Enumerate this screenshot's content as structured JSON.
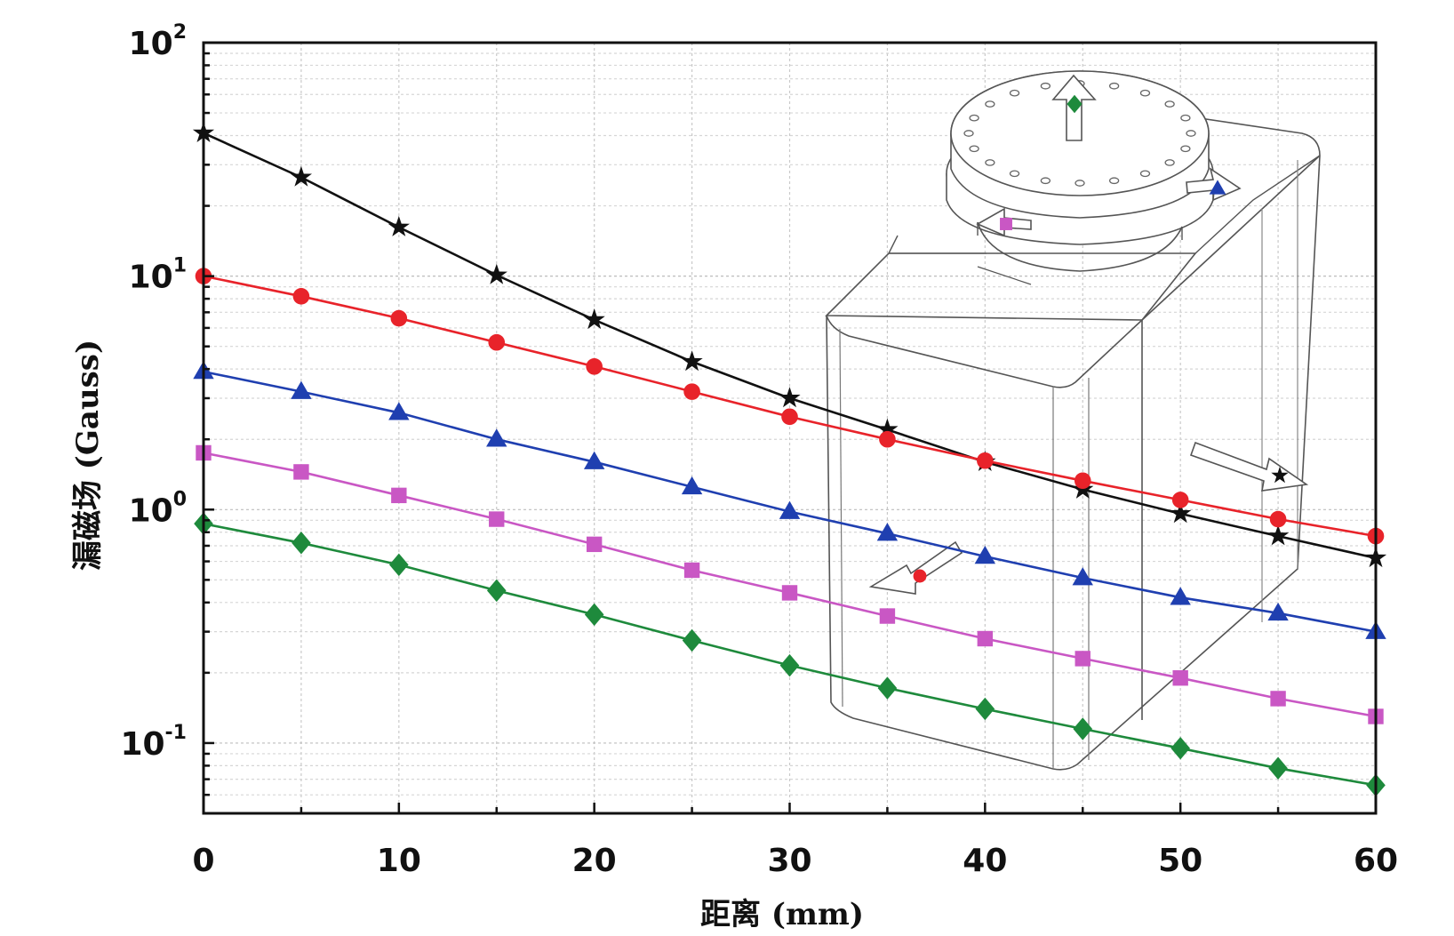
{
  "chart_data": {
    "type": "line",
    "xlabel": "距离 (mm)",
    "ylabel": "漏磁场 (Gauss)",
    "yscale": "log",
    "xlim": [
      0,
      60
    ],
    "ylim": [
      0.05,
      100
    ],
    "grid": true,
    "x": [
      0,
      5,
      10,
      15,
      20,
      25,
      30,
      35,
      40,
      45,
      50,
      55,
      60
    ],
    "x_ticks": [
      "0",
      "10",
      "20",
      "30",
      "40",
      "50",
      "60"
    ],
    "y_ticks": [
      {
        "base": "10",
        "exp": "-1"
      },
      {
        "base": "10",
        "exp": "0"
      },
      {
        "base": "10",
        "exp": "1"
      },
      {
        "base": "10",
        "exp": "2"
      }
    ],
    "series": [
      {
        "color": "#111111",
        "marker": "star",
        "values": [
          41,
          26.5,
          16.2,
          10.1,
          6.5,
          4.3,
          3.0,
          2.2,
          1.6,
          1.22,
          0.96,
          0.77,
          0.62
        ]
      },
      {
        "color": "#e8232a",
        "marker": "circle",
        "values": [
          10.0,
          8.2,
          6.6,
          5.2,
          4.1,
          3.2,
          2.5,
          2.0,
          1.62,
          1.33,
          1.1,
          0.91,
          0.77
        ]
      },
      {
        "color": "#1f3fb0",
        "marker": "triangle",
        "values": [
          3.9,
          3.2,
          2.6,
          2.0,
          1.6,
          1.25,
          0.98,
          0.79,
          0.63,
          0.51,
          0.42,
          0.36,
          0.3
        ]
      },
      {
        "color": "#c957c4",
        "marker": "square",
        "values": [
          1.75,
          1.45,
          1.15,
          0.91,
          0.71,
          0.55,
          0.44,
          0.35,
          0.28,
          0.23,
          0.19,
          0.155,
          0.13
        ]
      },
      {
        "color": "#1e8a3c",
        "marker": "diamond",
        "values": [
          0.87,
          0.72,
          0.58,
          0.45,
          0.355,
          0.275,
          0.215,
          0.172,
          0.14,
          0.115,
          0.095,
          0.078,
          0.066
        ]
      }
    ]
  },
  "inset": {
    "description_icon": "enclosure-with-circular-flange-icon",
    "arrow_markers": [
      {
        "color": "#1e8a3c",
        "marker": "diamond"
      },
      {
        "color": "#1f3fb0",
        "marker": "triangle"
      },
      {
        "color": "#c957c4",
        "marker": "square"
      },
      {
        "color": "#e8232a",
        "marker": "circle"
      },
      {
        "color": "#111111",
        "marker": "star"
      }
    ]
  }
}
